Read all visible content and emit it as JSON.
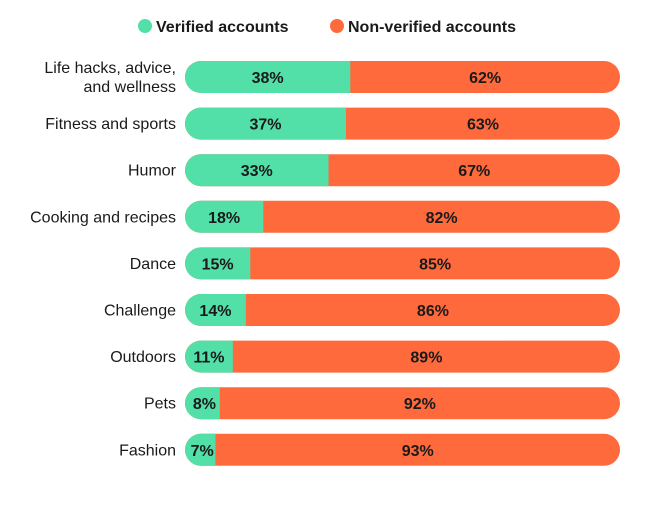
{
  "chart_data": {
    "type": "bar",
    "orientation": "horizontal",
    "stacked": true,
    "normalized": true,
    "title": "",
    "categories": [
      [
        "Life hacks, advice,",
        "and wellness"
      ],
      [
        "Fitness and sports"
      ],
      [
        "Humor"
      ],
      [
        "Cooking and recipes"
      ],
      [
        "Dance"
      ],
      [
        "Challenge"
      ],
      [
        "Outdoors"
      ],
      [
        "Pets"
      ],
      [
        "Fashion"
      ]
    ],
    "series": [
      {
        "name": "Verified accounts",
        "color": "#52DFA8",
        "values": [
          38,
          37,
          33,
          18,
          15,
          14,
          11,
          8,
          7
        ]
      },
      {
        "name": "Non-verified accounts",
        "color": "#FF6A3D",
        "values": [
          62,
          63,
          67,
          82,
          85,
          86,
          89,
          92,
          93
        ]
      }
    ],
    "value_suffix": "%",
    "legend_position": "top",
    "grid": false
  }
}
